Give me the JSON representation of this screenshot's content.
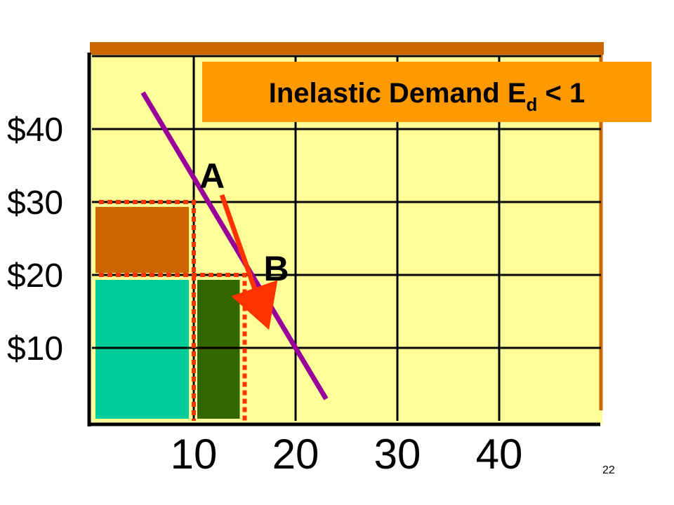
{
  "slide": {
    "page_number": "22"
  },
  "chart_data": {
    "type": "line",
    "title": {
      "main": "Inelastic Demand E",
      "sub": "d",
      "suffix": " < 1"
    },
    "xlabel": "",
    "ylabel": "",
    "x_ticks": [
      "10",
      "20",
      "30",
      "40"
    ],
    "x_tick_values": [
      10,
      20,
      30,
      40
    ],
    "y_ticks": [
      "$10",
      "$20",
      "$30",
      "$40"
    ],
    "y_tick_values": [
      10,
      20,
      30,
      40
    ],
    "xlim": [
      0,
      50
    ],
    "ylim": [
      0,
      50
    ],
    "grid": true,
    "series": [
      {
        "x": [
          5,
          23
        ],
        "y": [
          45,
          3
        ],
        "color": "#990099"
      }
    ],
    "points": [
      {
        "label": "A",
        "x": 10,
        "y": 30
      },
      {
        "label": "B",
        "x": 15,
        "y": 20
      }
    ],
    "areas": [
      {
        "x0": 0,
        "x1": 10,
        "y0": 20,
        "y1": 30,
        "color": "#cc6600"
      },
      {
        "x0": 0,
        "x1": 10,
        "y0": 0,
        "y1": 20,
        "color": "#00cc99"
      },
      {
        "x0": 10,
        "x1": 15,
        "y0": 0,
        "y1": 20,
        "color": "#336600"
      }
    ],
    "colors": {
      "plot_bg": "#ffff99",
      "border": "#cc6600",
      "title_bg": "#ff9900",
      "dotted": "#ff3300",
      "arrow": "#ff3300"
    }
  }
}
